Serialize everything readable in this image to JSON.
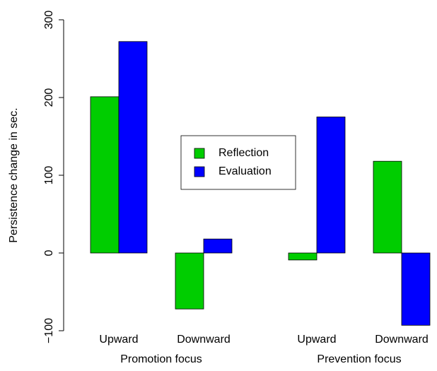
{
  "chart_data": {
    "type": "grouped_bar",
    "y_label": "Persistence change in sec.",
    "categories": [
      "Upward",
      "Downward",
      "Upward",
      "Downward"
    ],
    "groups": [
      "Promotion focus",
      "Prevention focus"
    ],
    "series": [
      {
        "name": "Reflection",
        "color": "#00cd00",
        "values": [
          201,
          -72,
          -9,
          118
        ]
      },
      {
        "name": "Evaluation",
        "color": "#0000ff",
        "values": [
          272,
          18,
          175,
          -93
        ]
      }
    ],
    "ylim": [
      -100,
      300
    ],
    "yticks": [
      {
        "value": -100,
        "label": "−100"
      },
      0,
      100,
      200,
      300
    ],
    "legend": "center"
  }
}
